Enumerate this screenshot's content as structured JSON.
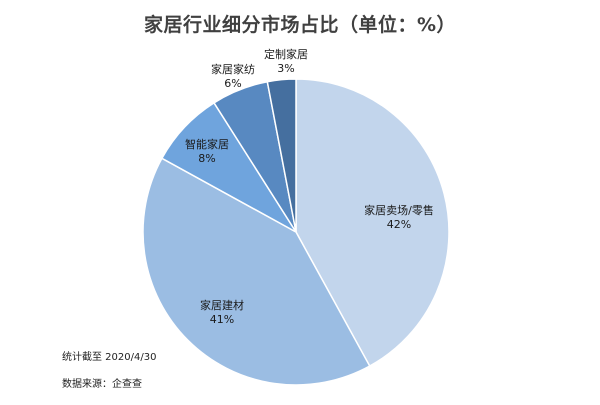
{
  "title": "家居行业细分市场占比（单位：%）",
  "footnotes": {
    "date": "统计截至 2020/4/30",
    "source": "数据来源：企查查"
  },
  "chart_data": {
    "type": "pie",
    "title": "家居行业细分市场占比（单位：%）",
    "start_angle_deg": 0,
    "direction": "clockwise",
    "slices": [
      {
        "label": "家居卖场/零售",
        "value": 42,
        "pct_label": "42%",
        "color": "#c2d5ec"
      },
      {
        "label": "家居建材",
        "value": 41,
        "pct_label": "41%",
        "color": "#9bbde3"
      },
      {
        "label": "智能家居",
        "value": 8,
        "pct_label": "8%",
        "color": "#6fa4dd"
      },
      {
        "label": "家居家纺",
        "value": 6,
        "pct_label": "6%",
        "color": "#5889c1"
      },
      {
        "label": "定制家居",
        "value": 3,
        "pct_label": "3%",
        "color": "#456f9f"
      }
    ]
  }
}
